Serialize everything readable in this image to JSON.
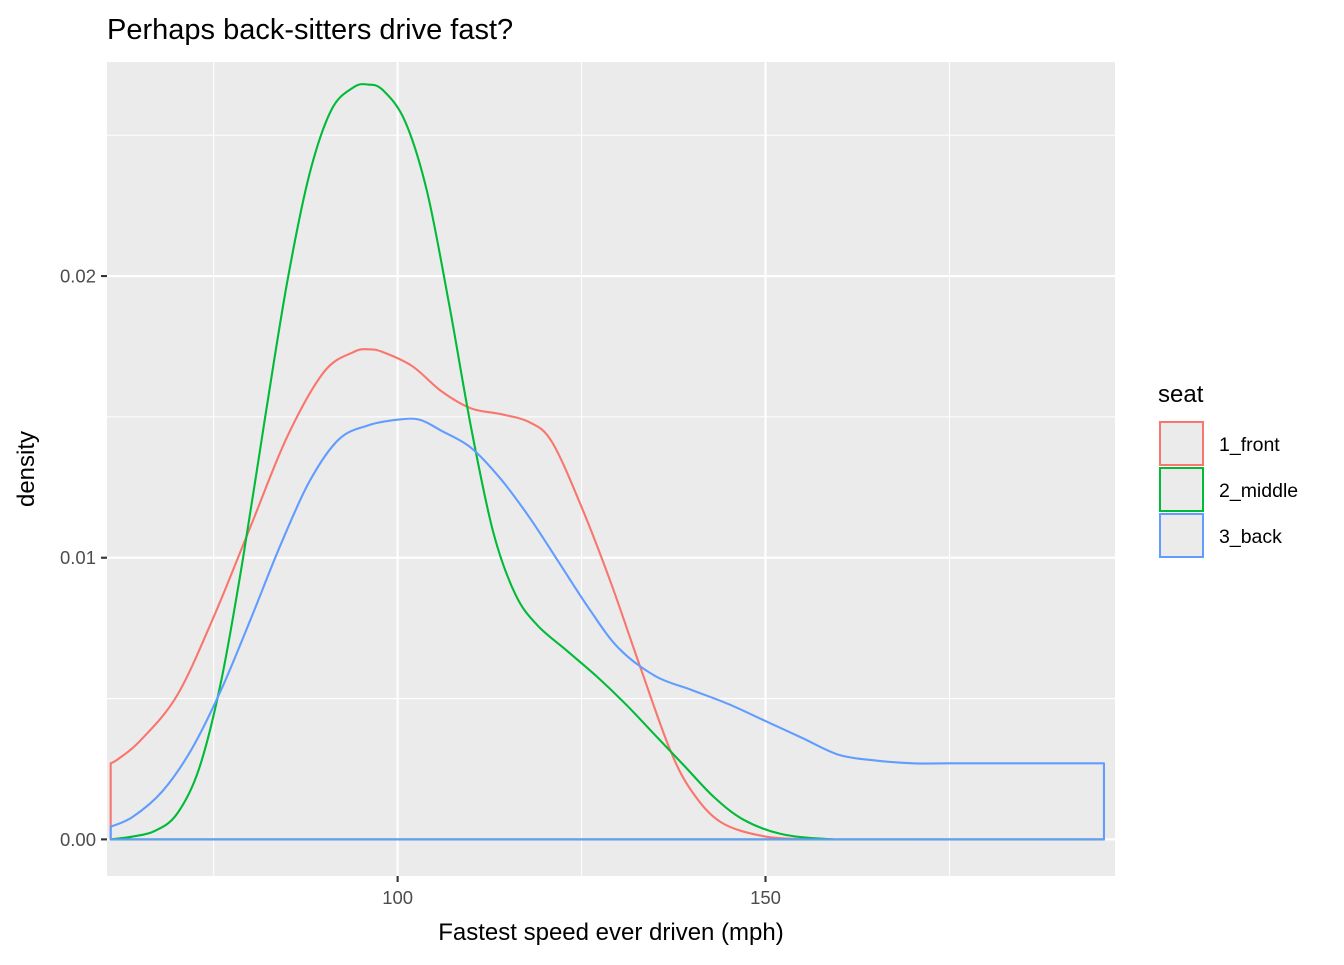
{
  "chart_data": {
    "type": "area",
    "title": "Perhaps back-sitters drive fast?",
    "xlabel": "Fastest speed ever driven (mph)",
    "ylabel": "density",
    "xlim": [
      60.5,
      197.5
    ],
    "ylim": [
      -0.0013,
      0.0276
    ],
    "x_ticks": [
      100,
      150
    ],
    "x_tick_labels": [
      "100",
      "150"
    ],
    "y_ticks": [
      0.0,
      0.01,
      0.02
    ],
    "y_tick_labels": [
      "0.00",
      "0.01",
      "0.02"
    ],
    "grid": true,
    "legend_title": "seat",
    "legend_position": "right",
    "series": [
      {
        "name": "1_front",
        "color": "#F8766D",
        "points": [
          [
            61,
            0.0027
          ],
          [
            62,
            0.00285
          ],
          [
            65,
            0.0035
          ],
          [
            70,
            0.0051
          ],
          [
            75,
            0.0079
          ],
          [
            80,
            0.0111
          ],
          [
            85,
            0.0143
          ],
          [
            90,
            0.0166
          ],
          [
            94,
            0.0173
          ],
          [
            96,
            0.0174
          ],
          [
            98,
            0.0173
          ],
          [
            102,
            0.0168
          ],
          [
            106,
            0.0159
          ],
          [
            110,
            0.0153
          ],
          [
            114,
            0.0151
          ],
          [
            118,
            0.0148
          ],
          [
            121,
            0.0141
          ],
          [
            125,
            0.0118
          ],
          [
            129,
            0.0091
          ],
          [
            133,
            0.0061
          ],
          [
            137,
            0.0032
          ],
          [
            140,
            0.0017
          ],
          [
            144,
            0.0006
          ],
          [
            150,
            0.0001
          ],
          [
            156,
            1e-05
          ],
          [
            162,
            0.0
          ],
          [
            170,
            0.0
          ],
          [
            196,
            0.0
          ]
        ]
      },
      {
        "name": "2_middle",
        "color": "#00BA38",
        "points": [
          [
            61,
            0.0
          ],
          [
            64,
            0.0001
          ],
          [
            67,
            0.0003
          ],
          [
            70,
            0.0009
          ],
          [
            73,
            0.0025
          ],
          [
            76,
            0.0056
          ],
          [
            79,
            0.01
          ],
          [
            82,
            0.015
          ],
          [
            85,
            0.0198
          ],
          [
            88,
            0.0236
          ],
          [
            91,
            0.0259
          ],
          [
            94,
            0.0267
          ],
          [
            96,
            0.0268
          ],
          [
            98,
            0.0266
          ],
          [
            101,
            0.0255
          ],
          [
            104,
            0.023
          ],
          [
            107,
            0.019
          ],
          [
            110,
            0.0146
          ],
          [
            113,
            0.0109
          ],
          [
            116,
            0.0087
          ],
          [
            119,
            0.0076
          ],
          [
            123,
            0.0067
          ],
          [
            127,
            0.0058
          ],
          [
            131,
            0.0048
          ],
          [
            135,
            0.0037
          ],
          [
            139,
            0.0026
          ],
          [
            143,
            0.0015
          ],
          [
            147,
            0.0007
          ],
          [
            152,
            0.0002
          ],
          [
            158,
            2e-05
          ],
          [
            165,
            0.0
          ],
          [
            196,
            0.0
          ]
        ]
      },
      {
        "name": "3_back",
        "color": "#619CFF",
        "points": [
          [
            61,
            0.00045
          ],
          [
            64,
            0.0008
          ],
          [
            68,
            0.0017
          ],
          [
            72,
            0.0032
          ],
          [
            76,
            0.0053
          ],
          [
            80,
            0.0078
          ],
          [
            84,
            0.0104
          ],
          [
            88,
            0.0127
          ],
          [
            92,
            0.0142
          ],
          [
            96,
            0.0147
          ],
          [
            100,
            0.0149
          ],
          [
            103,
            0.0149
          ],
          [
            106,
            0.0145
          ],
          [
            110,
            0.0139
          ],
          [
            114,
            0.0128
          ],
          [
            118,
            0.0114
          ],
          [
            122,
            0.0098
          ],
          [
            126,
            0.0082
          ],
          [
            130,
            0.0068
          ],
          [
            135,
            0.0058
          ],
          [
            140,
            0.0053
          ],
          [
            145,
            0.0048
          ],
          [
            150,
            0.0042
          ],
          [
            155,
            0.0036
          ],
          [
            160,
            0.003
          ],
          [
            165,
            0.0028
          ],
          [
            170,
            0.0027
          ],
          [
            175,
            0.0027
          ],
          [
            180,
            0.0027
          ],
          [
            185,
            0.0027
          ],
          [
            190,
            0.0027
          ],
          [
            195,
            0.0027
          ],
          [
            196,
            0.0027
          ]
        ]
      }
    ]
  }
}
